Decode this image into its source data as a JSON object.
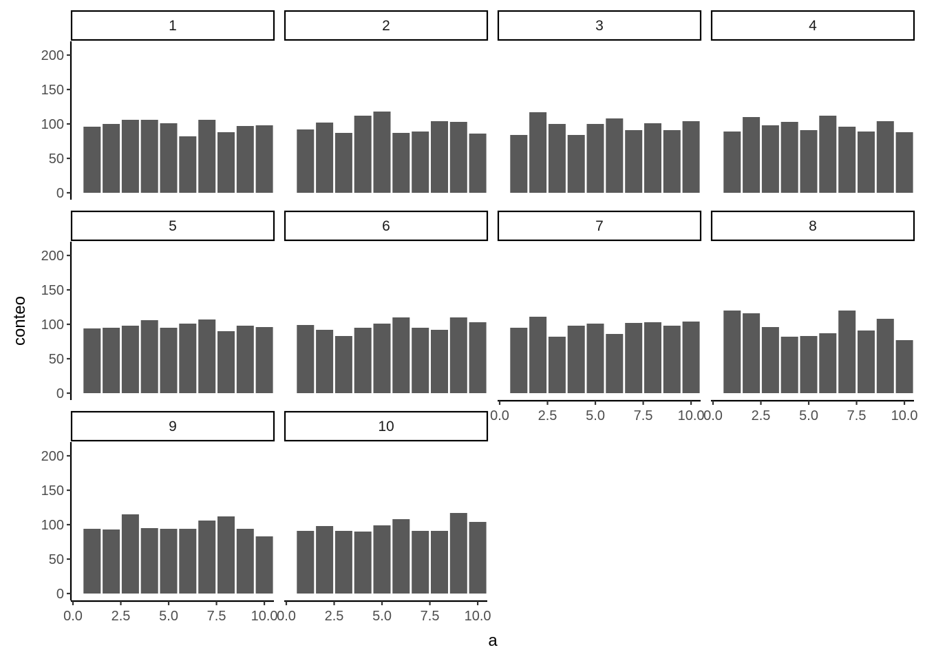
{
  "chart_data": {
    "type": "bar",
    "xlabel": "a",
    "ylabel": "conteo",
    "xlim": [
      0,
      10.5
    ],
    "ylim": [
      0,
      200
    ],
    "x_ticks": [
      0.0,
      2.5,
      5.0,
      7.5,
      10.0
    ],
    "x_tick_labels": [
      "0.0",
      "2.5",
      "5.0",
      "7.5",
      "10.0"
    ],
    "y_ticks": [
      0,
      50,
      100,
      150,
      200
    ],
    "y_tick_labels": [
      "0",
      "50",
      "100",
      "150",
      "200"
    ],
    "x": [
      1,
      2,
      3,
      4,
      5,
      6,
      7,
      8,
      9,
      10
    ],
    "bar_color": "#595959",
    "facets": [
      {
        "label": "1",
        "values": [
          96,
          100,
          106,
          106,
          101,
          82,
          106,
          88,
          97,
          98
        ]
      },
      {
        "label": "2",
        "values": [
          92,
          102,
          87,
          112,
          118,
          87,
          89,
          104,
          103,
          86
        ]
      },
      {
        "label": "3",
        "values": [
          84,
          117,
          100,
          84,
          100,
          108,
          91,
          101,
          91,
          104
        ]
      },
      {
        "label": "4",
        "values": [
          89,
          110,
          98,
          103,
          91,
          112,
          96,
          89,
          104,
          88
        ]
      },
      {
        "label": "5",
        "values": [
          94,
          95,
          98,
          106,
          95,
          101,
          107,
          90,
          98,
          96
        ]
      },
      {
        "label": "6",
        "values": [
          99,
          92,
          83,
          95,
          101,
          110,
          95,
          92,
          110,
          103
        ]
      },
      {
        "label": "7",
        "values": [
          95,
          111,
          82,
          98,
          101,
          86,
          102,
          103,
          98,
          104
        ]
      },
      {
        "label": "8",
        "values": [
          120,
          116,
          96,
          82,
          83,
          87,
          120,
          91,
          108,
          77
        ]
      },
      {
        "label": "9",
        "values": [
          94,
          93,
          115,
          95,
          94,
          94,
          106,
          112,
          94,
          83
        ]
      },
      {
        "label": "10",
        "values": [
          91,
          98,
          91,
          90,
          99,
          108,
          91,
          91,
          117,
          104
        ]
      }
    ]
  }
}
